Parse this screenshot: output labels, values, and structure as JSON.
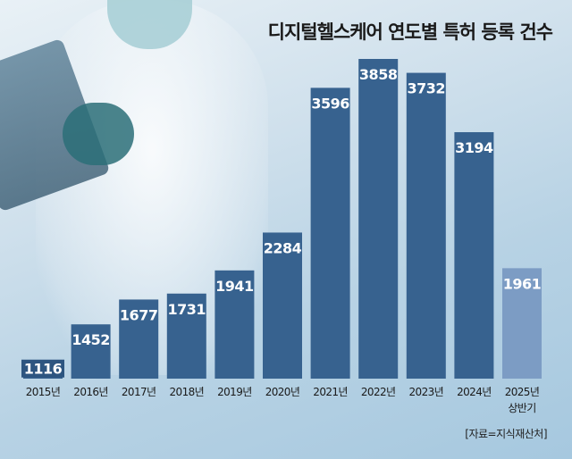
{
  "chart_data": {
    "type": "bar",
    "title": "디지털헬스케어 연도별 특허 등록 건수",
    "source": "[자료=지식재산처]",
    "categories": [
      "2015년",
      "2016년",
      "2017년",
      "2018년",
      "2019년",
      "2020년",
      "2021년",
      "2022년",
      "2023년",
      "2024년",
      "2025년\n상반기"
    ],
    "values": [
      1116,
      1452,
      1677,
      1731,
      1941,
      2284,
      3596,
      3858,
      3732,
      3194,
      1961
    ],
    "ylim": [
      960,
      3900
    ],
    "grid": false,
    "colors": {
      "bar": "#37628f",
      "highlight": "#7c9cc4",
      "label": "#ffffff",
      "tick": "#1a1a1a"
    }
  }
}
